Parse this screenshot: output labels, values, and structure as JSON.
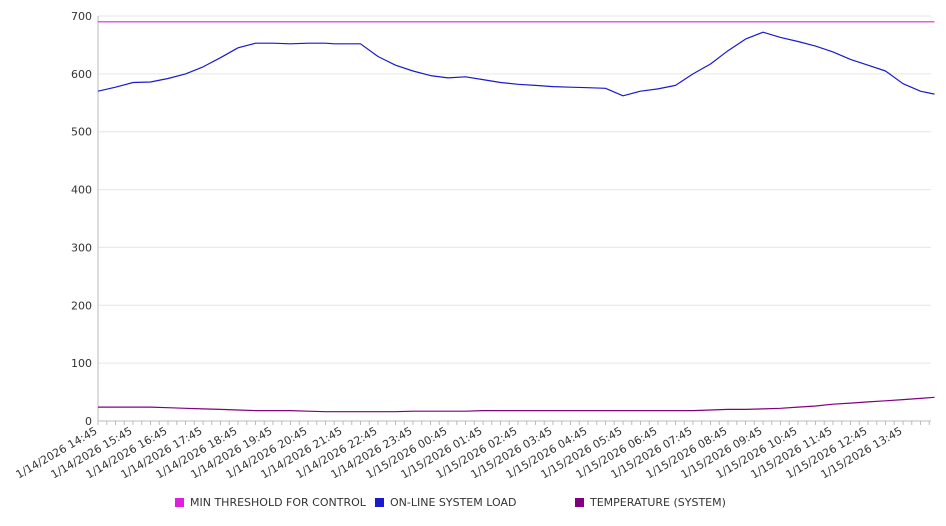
{
  "chart_data": {
    "type": "line",
    "title": "",
    "xlabel": "",
    "ylabel": "",
    "ylim": [
      0,
      700
    ],
    "yticks": [
      0,
      100,
      200,
      300,
      400,
      500,
      600,
      700
    ],
    "grid": true,
    "legend_position": "bottom",
    "xtick_labels": [
      "1/14/2026 14:45",
      "1/14/2026 15:45",
      "1/14/2026 16:45",
      "1/14/2026 17:45",
      "1/14/2026 18:45",
      "1/14/2026 19:45",
      "1/14/2026 20:45",
      "1/14/2026 21:45",
      "1/14/2026 22:45",
      "1/14/2026 23:45",
      "1/15/2026 00:45",
      "1/15/2026 01:45",
      "1/15/2026 02:45",
      "1/15/2026 03:45",
      "1/15/2026 04:45",
      "1/15/2026 05:45",
      "1/15/2026 06:45",
      "1/15/2026 07:45",
      "1/15/2026 08:45",
      "1/15/2026 09:45",
      "1/15/2026 10:45",
      "1/15/2026 11:45",
      "1/15/2026 12:45",
      "1/15/2026 13:45"
    ],
    "x_hours": [
      0,
      0.5,
      1,
      1.5,
      2,
      2.5,
      3,
      3.5,
      4,
      4.5,
      5,
      5.5,
      6,
      6.5,
      6.75,
      7,
      7.5,
      8,
      8.5,
      9,
      9.5,
      10,
      10.5,
      11,
      11.5,
      12,
      12.5,
      13,
      13.5,
      14,
      14.5,
      15,
      15.5,
      16,
      16.5,
      17,
      17.5,
      18,
      18.5,
      19,
      19.5,
      20,
      20.5,
      21,
      21.5,
      22,
      22.5,
      23,
      23.5,
      23.9
    ],
    "x_hours_start": "1/14/2026 14:45",
    "series": [
      {
        "name": "MIN THRESHOLD FOR CONTROL",
        "color": "#e020e0",
        "values": [
          690,
          690,
          690,
          690,
          690,
          690,
          690,
          690,
          690,
          690,
          690,
          690,
          690,
          690,
          690,
          690,
          690,
          690,
          690,
          690,
          690,
          690,
          690,
          690,
          690,
          690,
          690,
          690,
          690,
          690,
          690,
          690,
          690,
          690,
          690,
          690,
          690,
          690,
          690,
          690,
          690,
          690,
          690,
          690,
          690,
          690,
          690,
          690,
          690,
          690
        ]
      },
      {
        "name": "ON-LINE SYSTEM LOAD",
        "color": "#1a1acc",
        "values": [
          570,
          577,
          585,
          586,
          592,
          600,
          612,
          628,
          645,
          653,
          653,
          652,
          653,
          653,
          652,
          652,
          652,
          630,
          615,
          605,
          597,
          593,
          595,
          590,
          585,
          582,
          580,
          578,
          577,
          576,
          575,
          562,
          570,
          574,
          580,
          600,
          617,
          640,
          660,
          672,
          663,
          656,
          648,
          638,
          625,
          615,
          605,
          583,
          570,
          565
        ]
      },
      {
        "name": "TEMPERATURE (SYSTEM)",
        "color": "#800080",
        "values": [
          24,
          24,
          24,
          24,
          23,
          22,
          21,
          20,
          19,
          18,
          18,
          18,
          17,
          16,
          16,
          16,
          16,
          16,
          16,
          17,
          17,
          17,
          17,
          18,
          18,
          18,
          18,
          18,
          18,
          18,
          18,
          18,
          18,
          18,
          18,
          18,
          19,
          20,
          20,
          21,
          22,
          24,
          26,
          29,
          31,
          33,
          35,
          37,
          39,
          41
        ]
      }
    ]
  }
}
